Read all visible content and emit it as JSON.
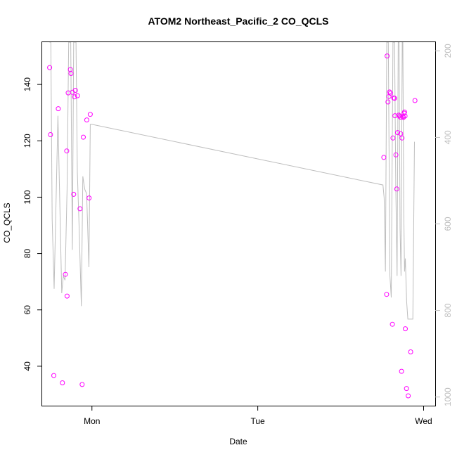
{
  "chart_data": {
    "type": "scatter",
    "title": "ATOM2 Northeast_Pacific_2 CO_QCLS",
    "xlabel": "Date",
    "ylabel": "CO_QCLS",
    "x_unit": "days",
    "xlim": [
      -0.3,
      2.07
    ],
    "ylim": [
      26,
      155
    ],
    "x_ticks": [
      {
        "value": 0,
        "label": "Mon"
      },
      {
        "value": 1,
        "label": "Tue"
      },
      {
        "value": 2,
        "label": "Wed"
      }
    ],
    "y_ticks": [
      40,
      60,
      80,
      100,
      120,
      140
    ],
    "y2_ticks": [
      200,
      400,
      600,
      800,
      1000
    ],
    "y2lim": [
      1020,
      180
    ],
    "y2_reversed": true,
    "grid": false,
    "colors": {
      "points": "#ff00ff",
      "line": "#bebebe",
      "right_axis": "#bdbdbd",
      "axes": "#000000"
    },
    "series": [
      {
        "type": "scatter",
        "points": [
          {
            "x": -0.255,
            "y": 146.0
          },
          {
            "x": -0.25,
            "y": 122.2
          },
          {
            "x": -0.23,
            "y": 36.7
          },
          {
            "x": -0.203,
            "y": 131.4
          },
          {
            "x": -0.178,
            "y": 34.1
          },
          {
            "x": -0.16,
            "y": 72.6
          },
          {
            "x": -0.152,
            "y": 116.4
          },
          {
            "x": -0.15,
            "y": 64.9
          },
          {
            "x": -0.143,
            "y": 137.0
          },
          {
            "x": -0.13,
            "y": 145.3
          },
          {
            "x": -0.126,
            "y": 143.9
          },
          {
            "x": -0.118,
            "y": 137.2
          },
          {
            "x": -0.11,
            "y": 101.0
          },
          {
            "x": -0.105,
            "y": 135.6
          },
          {
            "x": -0.1,
            "y": 137.9
          },
          {
            "x": -0.087,
            "y": 136.0
          },
          {
            "x": -0.072,
            "y": 95.9
          },
          {
            "x": -0.059,
            "y": 33.5
          },
          {
            "x": -0.052,
            "y": 121.3
          },
          {
            "x": -0.031,
            "y": 127.4
          },
          {
            "x": -0.017,
            "y": 99.7
          },
          {
            "x": -0.01,
            "y": 129.4
          },
          {
            "x": 1.76,
            "y": 114.1
          },
          {
            "x": 1.777,
            "y": 65.5
          },
          {
            "x": 1.78,
            "y": 150.1
          },
          {
            "x": 1.785,
            "y": 133.8
          },
          {
            "x": 1.791,
            "y": 135.7
          },
          {
            "x": 1.795,
            "y": 137.3
          },
          {
            "x": 1.8,
            "y": 136.9
          },
          {
            "x": 1.812,
            "y": 54.9
          },
          {
            "x": 1.815,
            "y": 121.0
          },
          {
            "x": 1.82,
            "y": 135.2
          },
          {
            "x": 1.825,
            "y": 135.1
          },
          {
            "x": 1.827,
            "y": 128.9
          },
          {
            "x": 1.833,
            "y": 115.0
          },
          {
            "x": 1.838,
            "y": 102.9
          },
          {
            "x": 1.843,
            "y": 122.9
          },
          {
            "x": 1.85,
            "y": 129.1
          },
          {
            "x": 1.855,
            "y": 128.8
          },
          {
            "x": 1.86,
            "y": 128.4
          },
          {
            "x": 1.862,
            "y": 122.5
          },
          {
            "x": 1.867,
            "y": 38.2
          },
          {
            "x": 1.87,
            "y": 121.0
          },
          {
            "x": 1.875,
            "y": 128.6
          },
          {
            "x": 1.878,
            "y": 128.3
          },
          {
            "x": 1.882,
            "y": 129.8
          },
          {
            "x": 1.885,
            "y": 130.2
          },
          {
            "x": 1.888,
            "y": 128.8
          },
          {
            "x": 1.89,
            "y": 53.3
          },
          {
            "x": 1.897,
            "y": 32.1
          },
          {
            "x": 1.907,
            "y": 29.5
          },
          {
            "x": 1.922,
            "y": 45.1
          },
          {
            "x": 1.948,
            "y": 134.3
          }
        ]
      },
      {
        "type": "line",
        "axis": "y2",
        "points": [
          {
            "x": -0.256,
            "y": 180
          },
          {
            "x": -0.248,
            "y": 180
          },
          {
            "x": -0.24,
            "y": 590
          },
          {
            "x": -0.228,
            "y": 750
          },
          {
            "x": -0.205,
            "y": 350
          },
          {
            "x": -0.182,
            "y": 760
          },
          {
            "x": -0.173,
            "y": 720
          },
          {
            "x": -0.162,
            "y": 730
          },
          {
            "x": -0.15,
            "y": 520
          },
          {
            "x": -0.14,
            "y": 180
          },
          {
            "x": -0.128,
            "y": 180
          },
          {
            "x": -0.118,
            "y": 660
          },
          {
            "x": -0.11,
            "y": 180
          },
          {
            "x": -0.096,
            "y": 180
          },
          {
            "x": -0.088,
            "y": 480
          },
          {
            "x": -0.078,
            "y": 600
          },
          {
            "x": -0.064,
            "y": 790
          },
          {
            "x": -0.055,
            "y": 490
          },
          {
            "x": -0.043,
            "y": 520
          },
          {
            "x": -0.032,
            "y": 530
          },
          {
            "x": -0.018,
            "y": 700
          },
          {
            "x": -0.01,
            "y": 370
          },
          {
            "x": 0.0,
            "y": 370
          },
          {
            "x": 1.755,
            "y": 510
          },
          {
            "x": 1.762,
            "y": 540
          },
          {
            "x": 1.77,
            "y": 710
          },
          {
            "x": 1.778,
            "y": 180
          },
          {
            "x": 1.787,
            "y": 180
          },
          {
            "x": 1.797,
            "y": 720
          },
          {
            "x": 1.805,
            "y": 770
          },
          {
            "x": 1.815,
            "y": 180
          },
          {
            "x": 1.825,
            "y": 180
          },
          {
            "x": 1.832,
            "y": 510
          },
          {
            "x": 1.84,
            "y": 720
          },
          {
            "x": 1.847,
            "y": 180
          },
          {
            "x": 1.852,
            "y": 180
          },
          {
            "x": 1.858,
            "y": 610
          },
          {
            "x": 1.864,
            "y": 720
          },
          {
            "x": 1.871,
            "y": 180
          },
          {
            "x": 1.875,
            "y": 180
          },
          {
            "x": 1.88,
            "y": 560
          },
          {
            "x": 1.885,
            "y": 710
          },
          {
            "x": 1.89,
            "y": 680
          },
          {
            "x": 1.898,
            "y": 780
          },
          {
            "x": 1.905,
            "y": 820
          },
          {
            "x": 1.912,
            "y": 820
          },
          {
            "x": 1.922,
            "y": 820
          },
          {
            "x": 1.935,
            "y": 820
          },
          {
            "x": 1.945,
            "y": 410
          }
        ]
      }
    ]
  }
}
